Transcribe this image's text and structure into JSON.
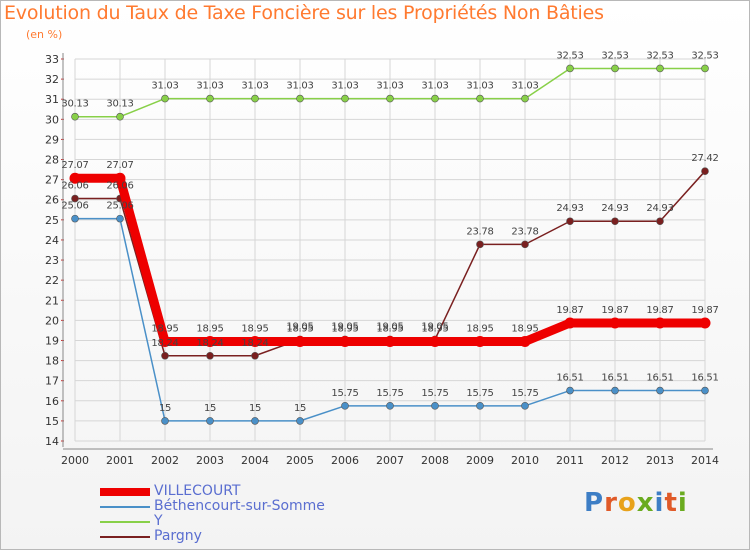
{
  "title": "Evolution du Taux de Taxe Foncière sur les Propriétés Non Bâties",
  "subtitle": "(en %)",
  "logo_text": [
    "P",
    "r",
    "o",
    "x",
    "i",
    "t",
    "i"
  ],
  "colors": {
    "title": "#ff7a30",
    "legend_text": "#5a6ed0",
    "grid": "#d6d6d6",
    "axis": "#888888",
    "logo": [
      "#3d7ec5",
      "#e05a28",
      "#e8a21b",
      "#6aab1f",
      "#3d7ec5",
      "#e05a28",
      "#6aab1f"
    ]
  },
  "chart_data": {
    "type": "line",
    "title": "Evolution du Taux de Taxe Foncière sur les Propriétés Non Bâties",
    "ylabel": "(en %)",
    "xlabel": "",
    "x": [
      "2000",
      "2001",
      "2002",
      "2003",
      "2004",
      "2005",
      "2006",
      "2007",
      "2008",
      "2009",
      "2010",
      "2011",
      "2012",
      "2013",
      "2014"
    ],
    "ylim": [
      14,
      33
    ],
    "yticks": [
      14,
      15,
      16,
      17,
      18,
      19,
      20,
      21,
      22,
      23,
      24,
      25,
      26,
      27,
      28,
      29,
      30,
      31,
      32,
      33
    ],
    "grid": true,
    "legend_position": "bottom-left",
    "series": [
      {
        "name": "VILLECOURT",
        "color": "#ee0000",
        "width": 9,
        "marker": 5.5,
        "values": [
          27.07,
          27.07,
          18.95,
          18.95,
          18.95,
          18.95,
          18.95,
          18.95,
          18.95,
          18.95,
          18.95,
          19.87,
          19.87,
          19.87,
          19.87
        ],
        "labels": [
          "27.07",
          "27.07",
          "18.95",
          "18.95",
          "18.95",
          "18.95",
          "18.95",
          "18.95",
          "18.95",
          "18.95",
          "18.95",
          "19.87",
          "19.87",
          "19.87",
          "19.87"
        ]
      },
      {
        "name": "Béthencourt-sur-Somme",
        "color": "#4a90c8",
        "width": 1.5,
        "marker": 3.5,
        "values": [
          25.06,
          25.06,
          15,
          15,
          15,
          15,
          15.75,
          15.75,
          15.75,
          15.75,
          15.75,
          16.51,
          16.51,
          16.51,
          16.51
        ],
        "labels": [
          "25.06",
          "25.06",
          "15",
          "15",
          "15",
          "15",
          "15.75",
          "15.75",
          "15.75",
          "15.75",
          "15.75",
          "16.51",
          "16.51",
          "16.51",
          "16.51"
        ]
      },
      {
        "name": "Y",
        "color": "#88d048",
        "width": 1.5,
        "marker": 3.5,
        "values": [
          30.13,
          30.13,
          31.03,
          31.03,
          31.03,
          31.03,
          31.03,
          31.03,
          31.03,
          31.03,
          31.03,
          32.53,
          32.53,
          32.53,
          32.53
        ],
        "labels": [
          "30.13",
          "30.13",
          "31.03",
          "31.03",
          "31.03",
          "31.03",
          "31.03",
          "31.03",
          "31.03",
          "31.03",
          "31.03",
          "32.53",
          "32.53",
          "32.53",
          "32.53"
        ]
      },
      {
        "name": "Pargny",
        "color": "#7a2020",
        "width": 1.5,
        "marker": 3.5,
        "values": [
          26.06,
          26.06,
          18.24,
          18.24,
          18.24,
          19.05,
          19.05,
          19.05,
          19.05,
          23.78,
          23.78,
          24.93,
          24.93,
          24.93,
          27.42
        ],
        "labels": [
          "26.06",
          "26.06",
          "18.24",
          "18.24",
          "18.24",
          "19.05",
          "19.05",
          "19.05",
          "19.05",
          "23.78",
          "23.78",
          "24.93",
          "24.93",
          "24.93",
          "27.42"
        ]
      }
    ]
  }
}
